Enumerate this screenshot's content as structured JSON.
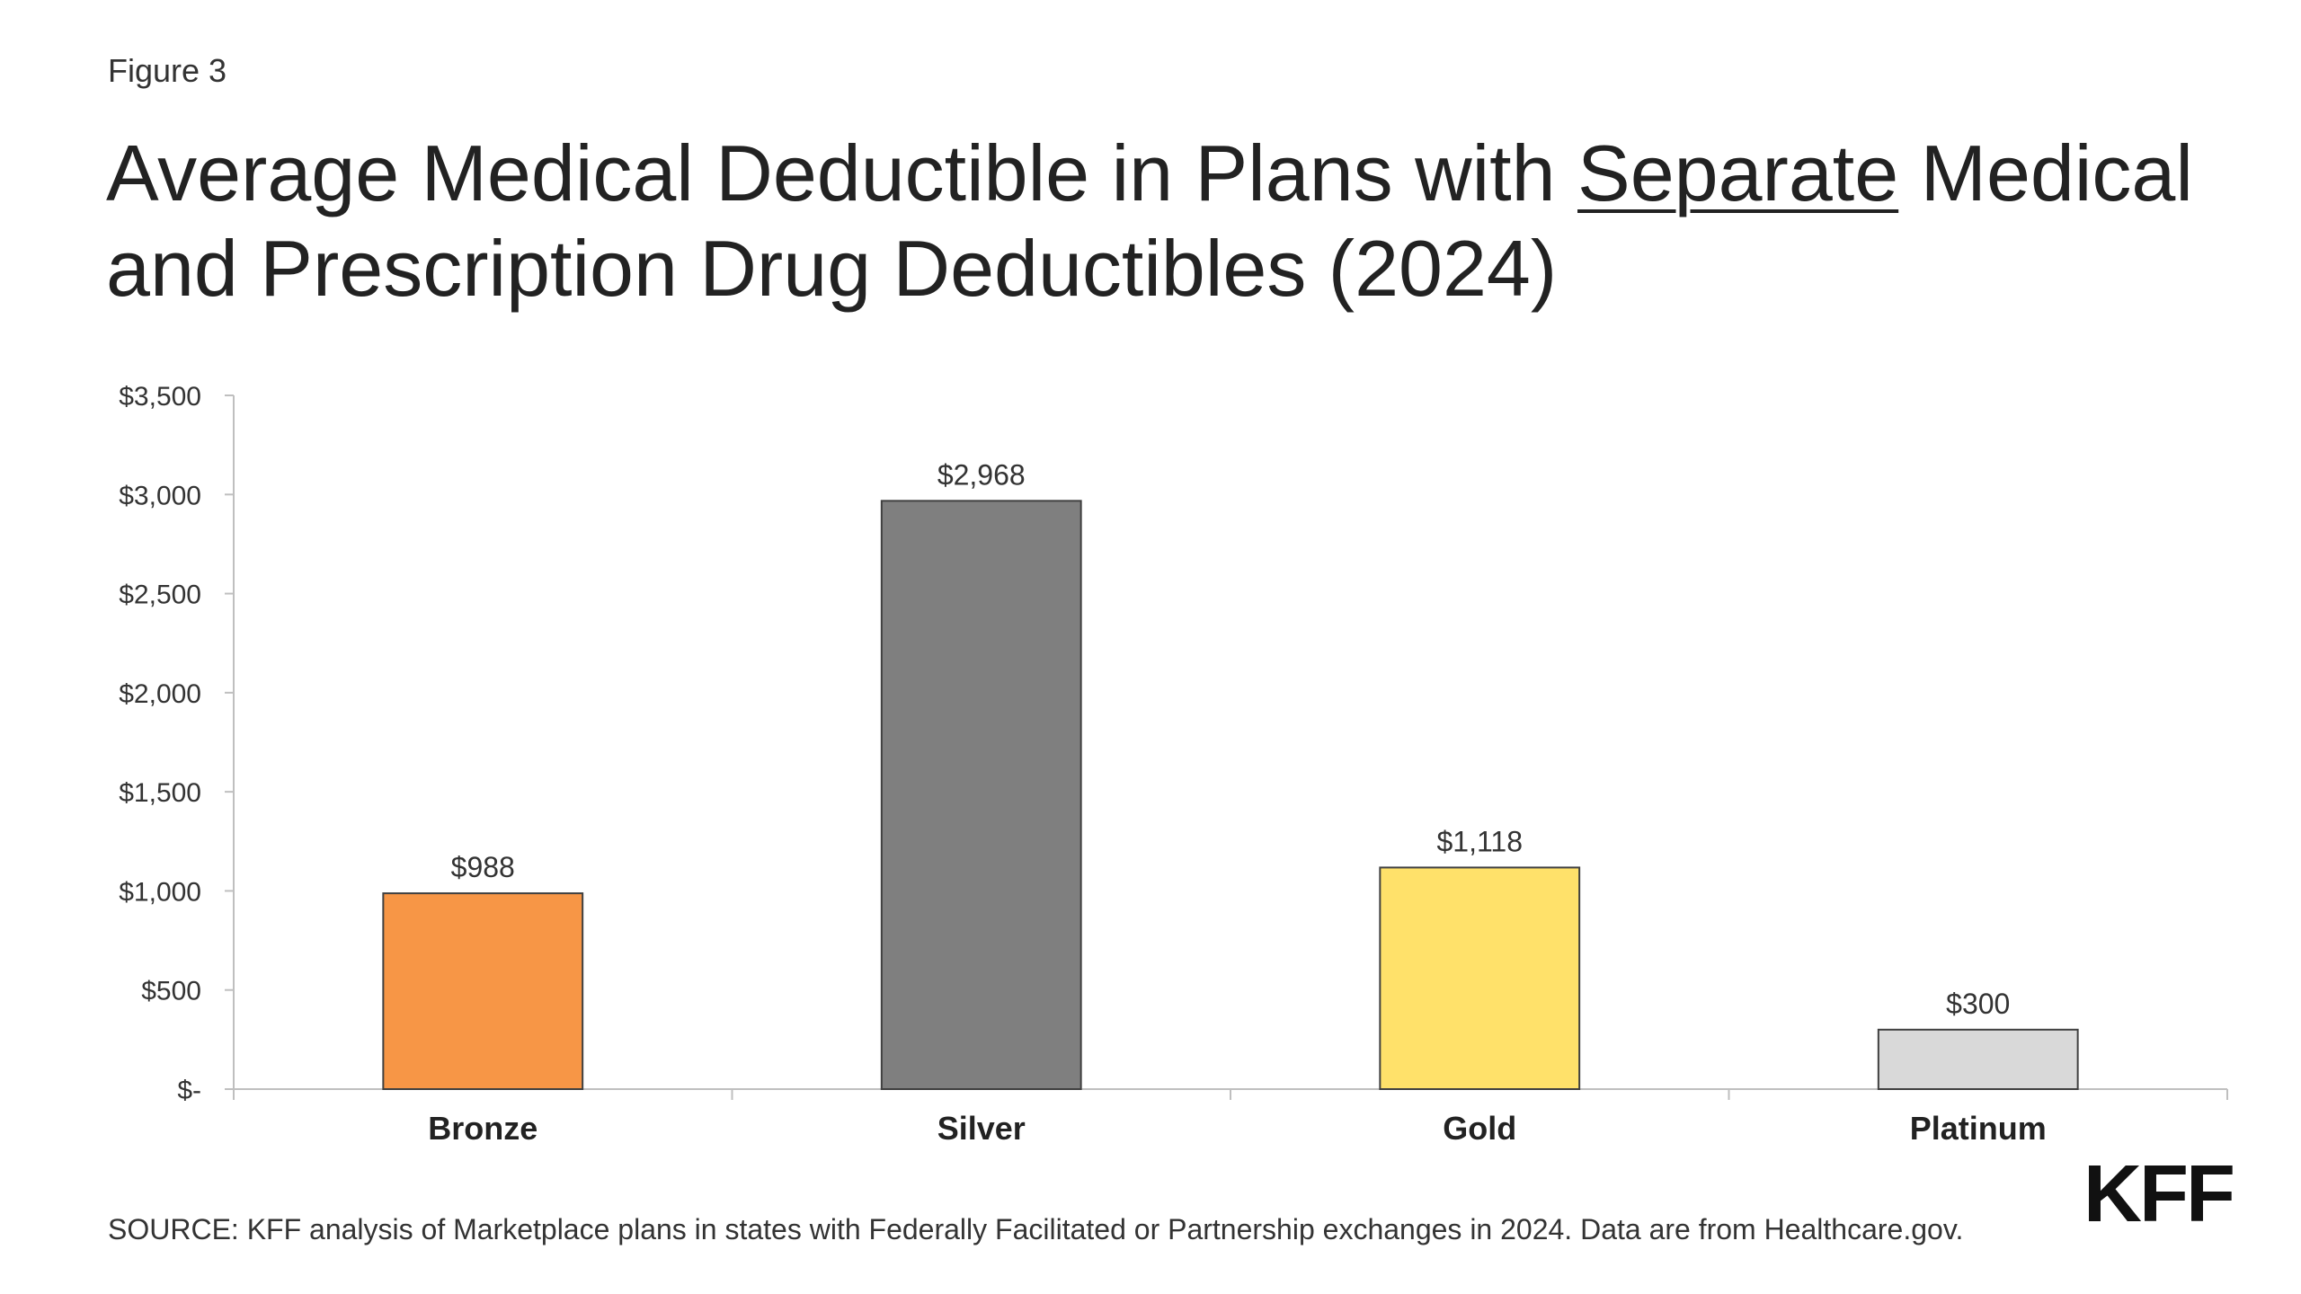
{
  "figure_label": "Figure 3",
  "title": {
    "before": "Average Medical Deductible in Plans with ",
    "underlined": "Separate",
    "after": " Medical and Prescription Drug Deductibles (2024)"
  },
  "source": "SOURCE: KFF analysis of Marketplace plans in states with Federally Facilitated or Partnership exchanges in 2024. Data are from Healthcare.gov.",
  "logo_text": "KFF",
  "chart_data": {
    "type": "bar",
    "categories": [
      "Bronze",
      "Silver",
      "Gold",
      "Platinum"
    ],
    "values": [
      988,
      2968,
      1118,
      300
    ],
    "value_labels": [
      "$988",
      "$2,968",
      "$1,118",
      "$300"
    ],
    "colors": [
      "#F79646",
      "#7F7F7F",
      "#FFE16A",
      "#D9D9D9"
    ],
    "ylim": [
      0,
      3500
    ],
    "yticks": [
      0,
      500,
      1000,
      1500,
      2000,
      2500,
      3000,
      3500
    ],
    "ytick_labels": [
      "$-",
      "$500",
      "$1,000",
      "$1,500",
      "$2,000",
      "$2,500",
      "$3,000",
      "$3,500"
    ],
    "xlabel": "",
    "ylabel": "",
    "grid": false,
    "legend": "none"
  }
}
